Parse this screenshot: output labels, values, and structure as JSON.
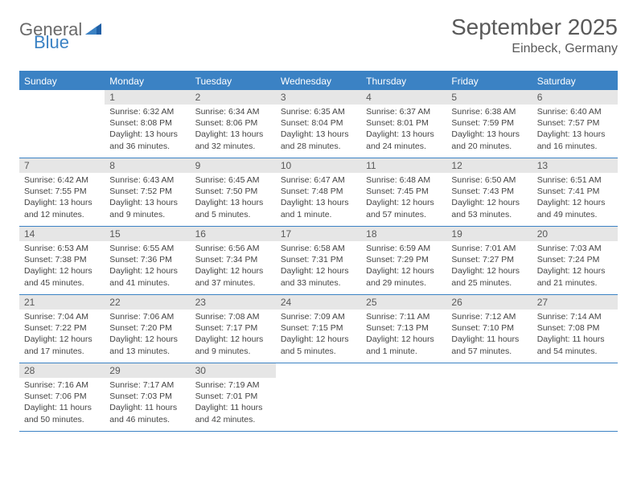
{
  "logo": {
    "general": "General",
    "blue": "Blue"
  },
  "title": "September 2025",
  "location": "Einbeck, Germany",
  "colors": {
    "accent": "#3b82c4",
    "header_bg": "#e6e6e6",
    "text": "#595959"
  },
  "weekdays": [
    "Sunday",
    "Monday",
    "Tuesday",
    "Wednesday",
    "Thursday",
    "Friday",
    "Saturday"
  ],
  "days": {
    "1": {
      "sunrise": "Sunrise: 6:32 AM",
      "sunset": "Sunset: 8:08 PM",
      "d1": "Daylight: 13 hours",
      "d2": "and 36 minutes."
    },
    "2": {
      "sunrise": "Sunrise: 6:34 AM",
      "sunset": "Sunset: 8:06 PM",
      "d1": "Daylight: 13 hours",
      "d2": "and 32 minutes."
    },
    "3": {
      "sunrise": "Sunrise: 6:35 AM",
      "sunset": "Sunset: 8:04 PM",
      "d1": "Daylight: 13 hours",
      "d2": "and 28 minutes."
    },
    "4": {
      "sunrise": "Sunrise: 6:37 AM",
      "sunset": "Sunset: 8:01 PM",
      "d1": "Daylight: 13 hours",
      "d2": "and 24 minutes."
    },
    "5": {
      "sunrise": "Sunrise: 6:38 AM",
      "sunset": "Sunset: 7:59 PM",
      "d1": "Daylight: 13 hours",
      "d2": "and 20 minutes."
    },
    "6": {
      "sunrise": "Sunrise: 6:40 AM",
      "sunset": "Sunset: 7:57 PM",
      "d1": "Daylight: 13 hours",
      "d2": "and 16 minutes."
    },
    "7": {
      "sunrise": "Sunrise: 6:42 AM",
      "sunset": "Sunset: 7:55 PM",
      "d1": "Daylight: 13 hours",
      "d2": "and 12 minutes."
    },
    "8": {
      "sunrise": "Sunrise: 6:43 AM",
      "sunset": "Sunset: 7:52 PM",
      "d1": "Daylight: 13 hours",
      "d2": "and 9 minutes."
    },
    "9": {
      "sunrise": "Sunrise: 6:45 AM",
      "sunset": "Sunset: 7:50 PM",
      "d1": "Daylight: 13 hours",
      "d2": "and 5 minutes."
    },
    "10": {
      "sunrise": "Sunrise: 6:47 AM",
      "sunset": "Sunset: 7:48 PM",
      "d1": "Daylight: 13 hours",
      "d2": "and 1 minute."
    },
    "11": {
      "sunrise": "Sunrise: 6:48 AM",
      "sunset": "Sunset: 7:45 PM",
      "d1": "Daylight: 12 hours",
      "d2": "and 57 minutes."
    },
    "12": {
      "sunrise": "Sunrise: 6:50 AM",
      "sunset": "Sunset: 7:43 PM",
      "d1": "Daylight: 12 hours",
      "d2": "and 53 minutes."
    },
    "13": {
      "sunrise": "Sunrise: 6:51 AM",
      "sunset": "Sunset: 7:41 PM",
      "d1": "Daylight: 12 hours",
      "d2": "and 49 minutes."
    },
    "14": {
      "sunrise": "Sunrise: 6:53 AM",
      "sunset": "Sunset: 7:38 PM",
      "d1": "Daylight: 12 hours",
      "d2": "and 45 minutes."
    },
    "15": {
      "sunrise": "Sunrise: 6:55 AM",
      "sunset": "Sunset: 7:36 PM",
      "d1": "Daylight: 12 hours",
      "d2": "and 41 minutes."
    },
    "16": {
      "sunrise": "Sunrise: 6:56 AM",
      "sunset": "Sunset: 7:34 PM",
      "d1": "Daylight: 12 hours",
      "d2": "and 37 minutes."
    },
    "17": {
      "sunrise": "Sunrise: 6:58 AM",
      "sunset": "Sunset: 7:31 PM",
      "d1": "Daylight: 12 hours",
      "d2": "and 33 minutes."
    },
    "18": {
      "sunrise": "Sunrise: 6:59 AM",
      "sunset": "Sunset: 7:29 PM",
      "d1": "Daylight: 12 hours",
      "d2": "and 29 minutes."
    },
    "19": {
      "sunrise": "Sunrise: 7:01 AM",
      "sunset": "Sunset: 7:27 PM",
      "d1": "Daylight: 12 hours",
      "d2": "and 25 minutes."
    },
    "20": {
      "sunrise": "Sunrise: 7:03 AM",
      "sunset": "Sunset: 7:24 PM",
      "d1": "Daylight: 12 hours",
      "d2": "and 21 minutes."
    },
    "21": {
      "sunrise": "Sunrise: 7:04 AM",
      "sunset": "Sunset: 7:22 PM",
      "d1": "Daylight: 12 hours",
      "d2": "and 17 minutes."
    },
    "22": {
      "sunrise": "Sunrise: 7:06 AM",
      "sunset": "Sunset: 7:20 PM",
      "d1": "Daylight: 12 hours",
      "d2": "and 13 minutes."
    },
    "23": {
      "sunrise": "Sunrise: 7:08 AM",
      "sunset": "Sunset: 7:17 PM",
      "d1": "Daylight: 12 hours",
      "d2": "and 9 minutes."
    },
    "24": {
      "sunrise": "Sunrise: 7:09 AM",
      "sunset": "Sunset: 7:15 PM",
      "d1": "Daylight: 12 hours",
      "d2": "and 5 minutes."
    },
    "25": {
      "sunrise": "Sunrise: 7:11 AM",
      "sunset": "Sunset: 7:13 PM",
      "d1": "Daylight: 12 hours",
      "d2": "and 1 minute."
    },
    "26": {
      "sunrise": "Sunrise: 7:12 AM",
      "sunset": "Sunset: 7:10 PM",
      "d1": "Daylight: 11 hours",
      "d2": "and 57 minutes."
    },
    "27": {
      "sunrise": "Sunrise: 7:14 AM",
      "sunset": "Sunset: 7:08 PM",
      "d1": "Daylight: 11 hours",
      "d2": "and 54 minutes."
    },
    "28": {
      "sunrise": "Sunrise: 7:16 AM",
      "sunset": "Sunset: 7:06 PM",
      "d1": "Daylight: 11 hours",
      "d2": "and 50 minutes."
    },
    "29": {
      "sunrise": "Sunrise: 7:17 AM",
      "sunset": "Sunset: 7:03 PM",
      "d1": "Daylight: 11 hours",
      "d2": "and 46 minutes."
    },
    "30": {
      "sunrise": "Sunrise: 7:19 AM",
      "sunset": "Sunset: 7:01 PM",
      "d1": "Daylight: 11 hours",
      "d2": "and 42 minutes."
    }
  },
  "layout": {
    "first_day_column": 1,
    "num_days": 30,
    "weeks": 5
  }
}
